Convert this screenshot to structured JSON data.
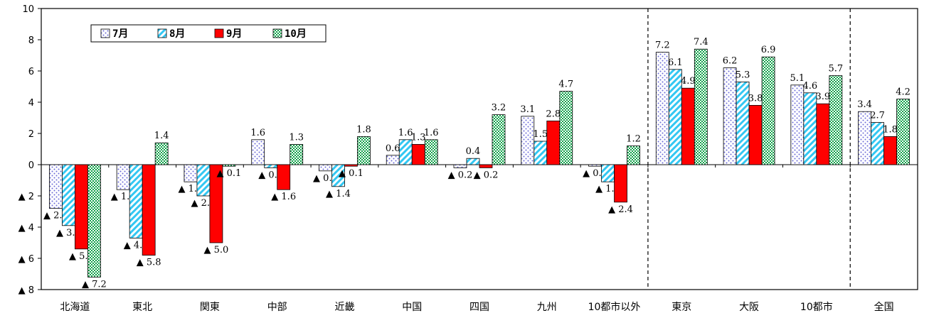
{
  "chart_data": {
    "type": "bar",
    "categories": [
      "北海道",
      "東北",
      "関東",
      "中部",
      "近畿",
      "中国",
      "四国",
      "九州",
      "10都市以外",
      "東京",
      "大阪",
      "10都市",
      "全国"
    ],
    "series": [
      {
        "name": "7月",
        "values": [
          -2.8,
          -1.6,
          -1.1,
          1.6,
          -0.4,
          0.6,
          -0.2,
          3.1,
          -0.1,
          7.2,
          6.2,
          5.1,
          3.4
        ]
      },
      {
        "name": "8月",
        "values": [
          -3.9,
          -4.7,
          -2.0,
          -0.2,
          -1.4,
          1.6,
          0.4,
          1.5,
          -1.1,
          6.1,
          5.3,
          4.6,
          2.7
        ]
      },
      {
        "name": "9月",
        "values": [
          -5.4,
          -5.8,
          -5.0,
          -1.6,
          -0.1,
          1.3,
          -0.2,
          2.8,
          -2.4,
          4.9,
          3.8,
          3.9,
          1.8
        ]
      },
      {
        "name": "10月",
        "values": [
          -7.2,
          1.4,
          -0.1,
          1.3,
          1.8,
          1.6,
          3.2,
          4.7,
          1.2,
          7.4,
          6.9,
          5.7,
          4.2
        ]
      }
    ],
    "ylim": [
      -8,
      10
    ],
    "yticks": [
      10,
      8,
      6,
      4,
      2,
      0,
      -2,
      -4,
      -6,
      -8
    ],
    "ytick_labels": [
      "10",
      "8",
      "6",
      "4",
      "2",
      "0",
      "▲ 2",
      "▲ 4",
      "▲ 6",
      "▲ 8"
    ],
    "negative_prefix": "▲ ",
    "separators_after": [
      8,
      11
    ],
    "legend_position": "top-left",
    "colors": {
      "7月": "#c9c9ff",
      "8月": "#33ccff",
      "9月": "#ff0000",
      "10月": "#00aa44"
    }
  }
}
